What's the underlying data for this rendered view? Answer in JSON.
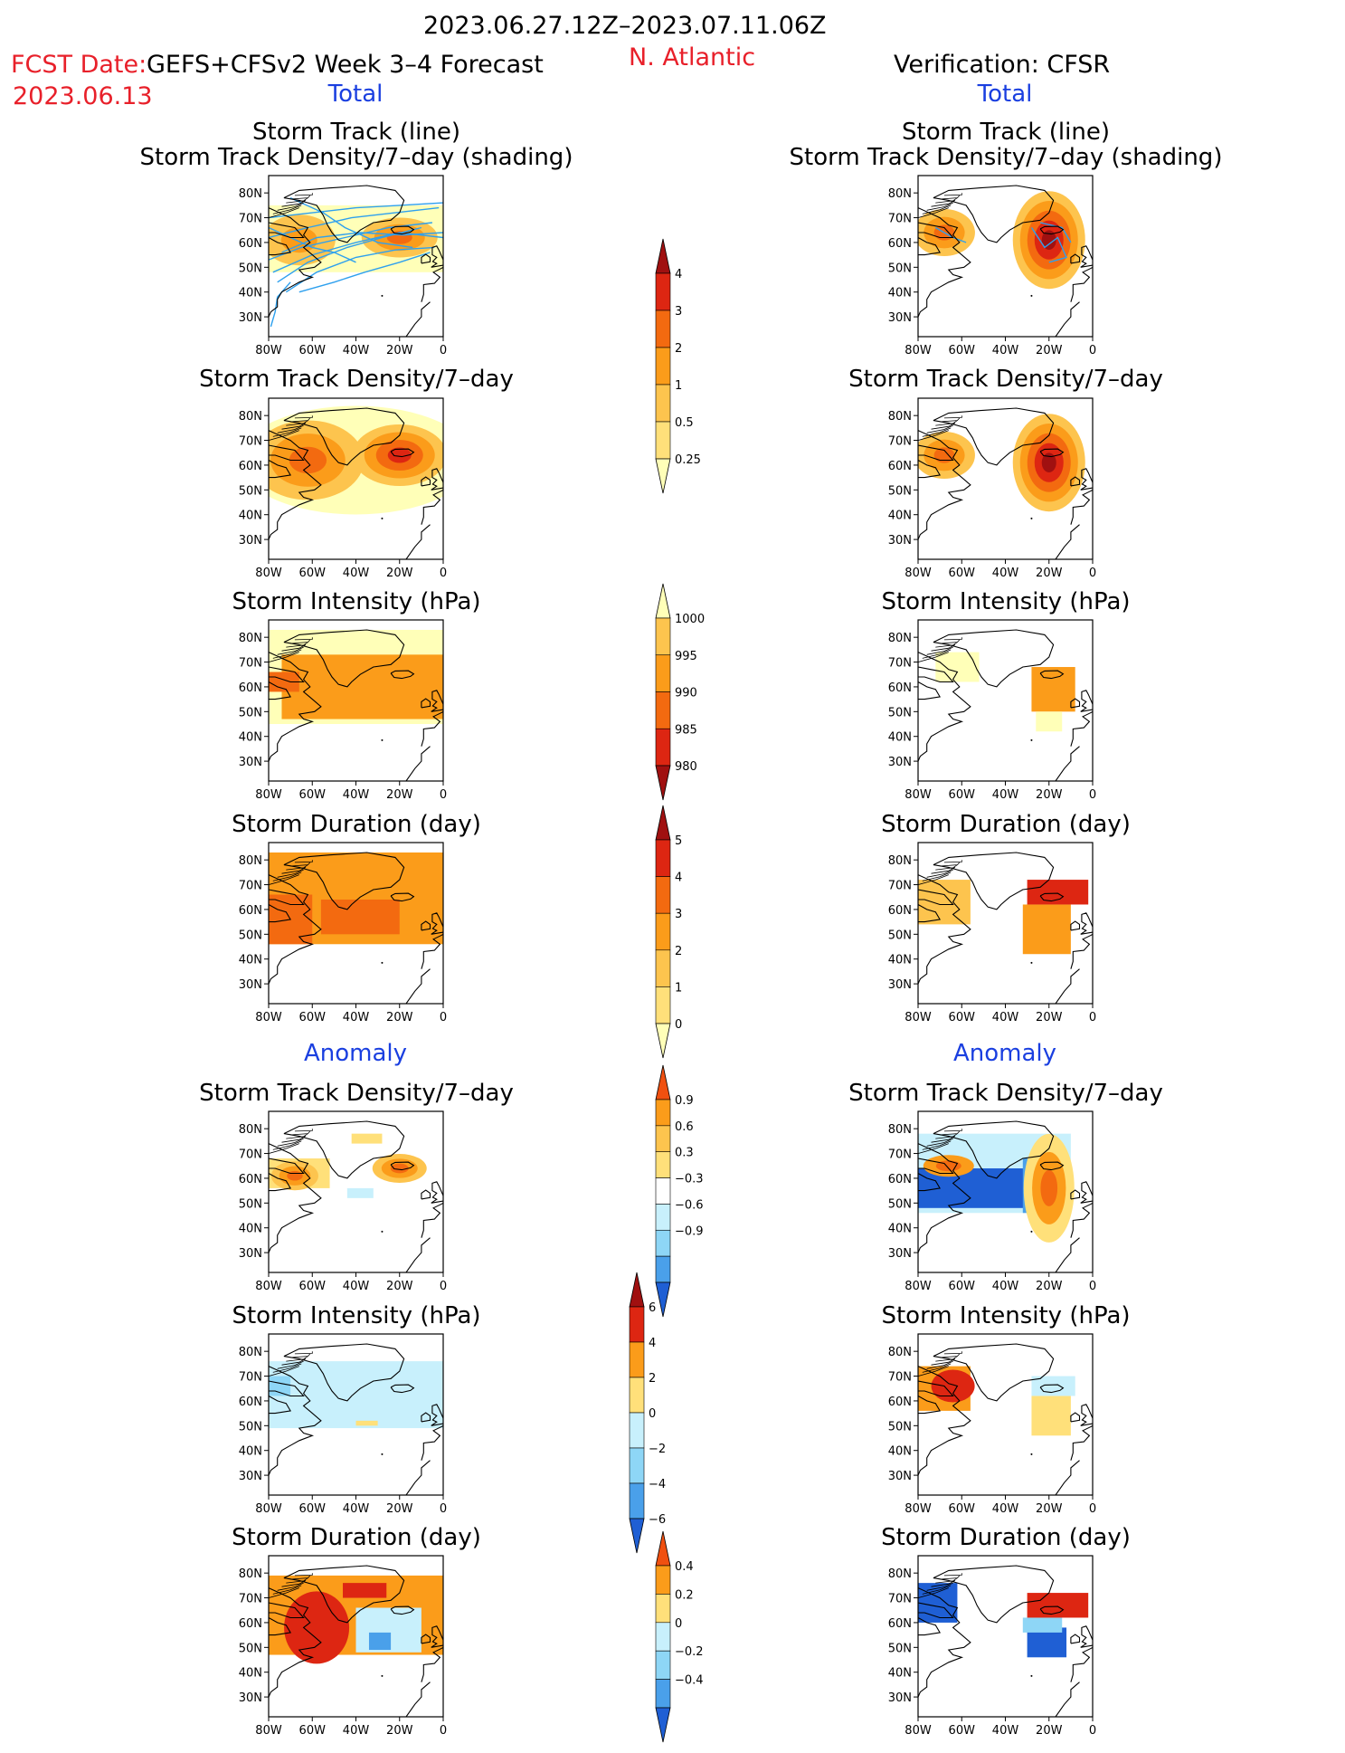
{
  "header": {
    "period": "2023.06.27.12Z–2023.07.11.06Z",
    "fcst_label": "FCST Date:",
    "fcst_date": "2023.06.13",
    "model": "GEFS+CFSv2 Week 3–4 Forecast",
    "region": "N. Atlantic",
    "verification": "Verification: CFSR"
  },
  "sections": {
    "total": "Total",
    "anomaly": "Anomaly"
  },
  "panel_titles": {
    "track": [
      "Storm Track (line)",
      "Storm Track Density/7–day (shading)"
    ],
    "density": "Storm Track Density/7–day",
    "intensity": "Storm Intensity (hPa)",
    "duration": "Storm Duration (day)"
  },
  "map_axes": {
    "lat_labels": [
      "80N",
      "70N",
      "60N",
      "50N",
      "40N",
      "30N"
    ],
    "lon_labels": [
      "80W",
      "60W",
      "40W",
      "20W",
      "0"
    ]
  },
  "colors": {
    "yellow_light": "#ffffb8",
    "yellow": "#ffe07a",
    "gold": "#fdc44e",
    "orange": "#fb9c1a",
    "orange_red": "#f36a10",
    "red": "#dd2612",
    "dark_red": "#a01010",
    "blue_light": "#c8f0fc",
    "blue_sky": "#8ed6f6",
    "blue_mid": "#4aa0ea",
    "blue_dark": "#1f5fd4",
    "track_line": "#2ea0ee"
  },
  "colorbars": {
    "density_total": {
      "labels": [
        "4",
        "3",
        "2",
        "1",
        "0.5",
        "0.25"
      ],
      "colors": [
        "#a01010",
        "#dd2612",
        "#f36a10",
        "#fb9c1a",
        "#fdc44e",
        "#ffe07a",
        "#ffffb8"
      ]
    },
    "intensity_total": {
      "labels": [
        "1000",
        "995",
        "990",
        "985",
        "980"
      ],
      "colors": [
        "#ffffb8",
        "#fdc44e",
        "#fb9c1a",
        "#f36a10",
        "#dd2612",
        "#a01010"
      ]
    },
    "duration_total": {
      "labels": [
        "5",
        "4",
        "3",
        "2",
        "1",
        "0"
      ],
      "colors": [
        "#a01010",
        "#dd2612",
        "#f36a10",
        "#fb9c1a",
        "#fdc44e",
        "#ffe07a",
        "#ffffb8"
      ]
    },
    "density_anom": {
      "labels": [
        "0.9",
        "0.6",
        "0.3",
        "−0.3",
        "−0.6",
        "−0.9"
      ],
      "colors": [
        "#f05010",
        "#fb9c1a",
        "#fdc44e",
        "#ffe07a",
        "#ffffff",
        "#c8f0fc",
        "#8ed6f6",
        "#4aa0ea",
        "#1f5fd4"
      ]
    },
    "intensity_anom": {
      "labels": [
        "6",
        "4",
        "2",
        "0",
        "−2",
        "−4",
        "−6"
      ],
      "colors": [
        "#a01010",
        "#dd2612",
        "#fb9c1a",
        "#ffe07a",
        "#c8f0fc",
        "#8ed6f6",
        "#4aa0ea",
        "#1f5fd4"
      ]
    },
    "duration_anom": {
      "labels": [
        "0.4",
        "0.2",
        "0",
        "−0.2",
        "−0.4"
      ],
      "colors": [
        "#f05010",
        "#fb9c1a",
        "#ffe07a",
        "#c8f0fc",
        "#8ed6f6",
        "#4aa0ea",
        "#1f5fd4"
      ]
    }
  }
}
